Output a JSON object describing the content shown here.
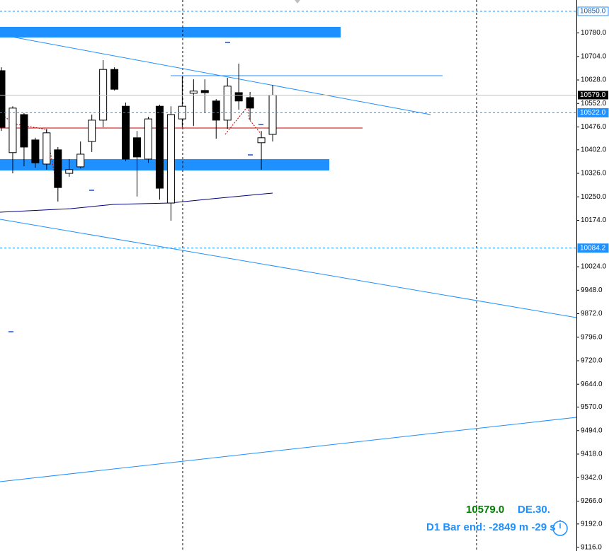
{
  "chart_data": {
    "type": "candlestick",
    "open": [
      10658,
      10393,
      10516,
      10434,
      10356,
      10402,
      10326,
      10347,
      10429,
      10498,
      10662,
      10543,
      10441,
      10372,
      10543,
      10230,
      10502,
      10585,
      10594,
      10560,
      10498,
      10587,
      10571,
      10425,
      10452
    ],
    "high": [
      10669,
      10543,
      10521,
      10441,
      10470,
      10411,
      10372,
      10429,
      10516,
      10692,
      10669,
      10555,
      10463,
      10509,
      10548,
      10543,
      10640,
      10630,
      10630,
      10566,
      10635,
      10681,
      10589,
      10463,
      10612
    ],
    "low": [
      10463,
      10326,
      10349,
      10344,
      10338,
      10235,
      10315,
      10342,
      10395,
      10475,
      10594,
      10365,
      10251,
      10360,
      10241,
      10173,
      10475,
      10479,
      10521,
      10438,
      10470,
      10532,
      10498,
      10338,
      10429
    ],
    "close": [
      10475,
      10537,
      10411,
      10360,
      10457,
      10280,
      10338,
      10388,
      10498,
      10662,
      10598,
      10372,
      10379,
      10502,
      10278,
      10516,
      10543,
      10592,
      10587,
      10498,
      10608,
      10560,
      10537,
      10441,
      10579
    ],
    "ylim": [
      9104.6,
      10886.6
    ],
    "yticks": [
      {
        "value": 10780,
        "label": "10780.0"
      },
      {
        "value": 10704,
        "label": "10704.0"
      },
      {
        "value": 10628,
        "label": "10628.0"
      },
      {
        "value": 10552,
        "label": "10552.0"
      },
      {
        "value": 10476,
        "label": "10476.0"
      },
      {
        "value": 10402,
        "label": "10402.0"
      },
      {
        "value": 10326,
        "label": "10326.0"
      },
      {
        "value": 10250,
        "label": "10250.0"
      },
      {
        "value": 10174,
        "label": "10174.0"
      },
      {
        "value": 10024,
        "label": "10024.0"
      },
      {
        "value": 9948,
        "label": "9948.0"
      },
      {
        "value": 9872,
        "label": "9872.0"
      },
      {
        "value": 9796,
        "label": "9796.0"
      },
      {
        "value": 9720,
        "label": "9720.0"
      },
      {
        "value": 9644,
        "label": "9644.0"
      },
      {
        "value": 9570,
        "label": "9570.0"
      },
      {
        "value": 9494,
        "label": "9494.0"
      },
      {
        "value": 9418,
        "label": "9418.0"
      },
      {
        "value": 9342,
        "label": "9342.0"
      },
      {
        "value": 9266,
        "label": "9266.0"
      },
      {
        "value": 9192,
        "label": "9192.0"
      },
      {
        "value": 9116,
        "label": "9116.0"
      }
    ],
    "levels": [
      {
        "value": 10850,
        "label": "10850.0",
        "style": "outline"
      },
      {
        "value": 10522,
        "label": "10522.0",
        "style": "filled"
      },
      {
        "value": 10084.2,
        "label": "10084.2",
        "style": "filled"
      }
    ],
    "current_price": {
      "value": 10579,
      "label": "10579.0"
    },
    "bull_color": "#ffffff",
    "bear_color": "#000000",
    "level_color": "#1e90ff",
    "info": {
      "price": "10579.0",
      "symbol": "DE.30.",
      "timer": "D1 Bar end: -2849 m -29 s"
    }
  }
}
